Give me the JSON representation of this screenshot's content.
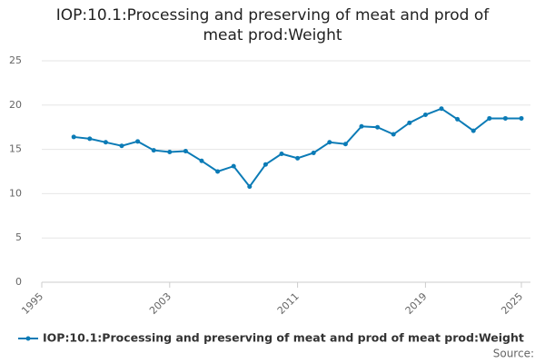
{
  "chart_data": {
    "type": "line",
    "title": "IOP:10.1:Processing and preserving of meat and prod of meat prod:Weight",
    "x": [
      1997,
      1998,
      1999,
      2000,
      2001,
      2002,
      2003,
      2004,
      2005,
      2006,
      2007,
      2008,
      2009,
      2010,
      2011,
      2012,
      2013,
      2014,
      2015,
      2016,
      2017,
      2018,
      2019,
      2020,
      2021,
      2022,
      2023,
      2024,
      2025
    ],
    "series": [
      {
        "name": "IOP:10.1:Processing and preserving of meat and prod of meat prod:Weight",
        "color": "#0b7bb6",
        "values": [
          16.4,
          16.2,
          15.8,
          15.4,
          15.9,
          14.9,
          14.7,
          14.8,
          13.7,
          12.5,
          13.1,
          10.8,
          13.3,
          14.5,
          14.0,
          14.6,
          15.8,
          15.6,
          17.6,
          17.5,
          16.7,
          18.0,
          18.9,
          19.6,
          18.4,
          17.1,
          18.5,
          18.5,
          18.5
        ]
      }
    ],
    "xlim": [
      1995,
      2025
    ],
    "xticks": [
      1995,
      2003,
      2011,
      2019,
      2025
    ],
    "ylim": [
      0,
      25
    ],
    "yticks": [
      0,
      5,
      10,
      15,
      20,
      25
    ],
    "grid": true,
    "legend": "bottom",
    "source": "Source:"
  }
}
